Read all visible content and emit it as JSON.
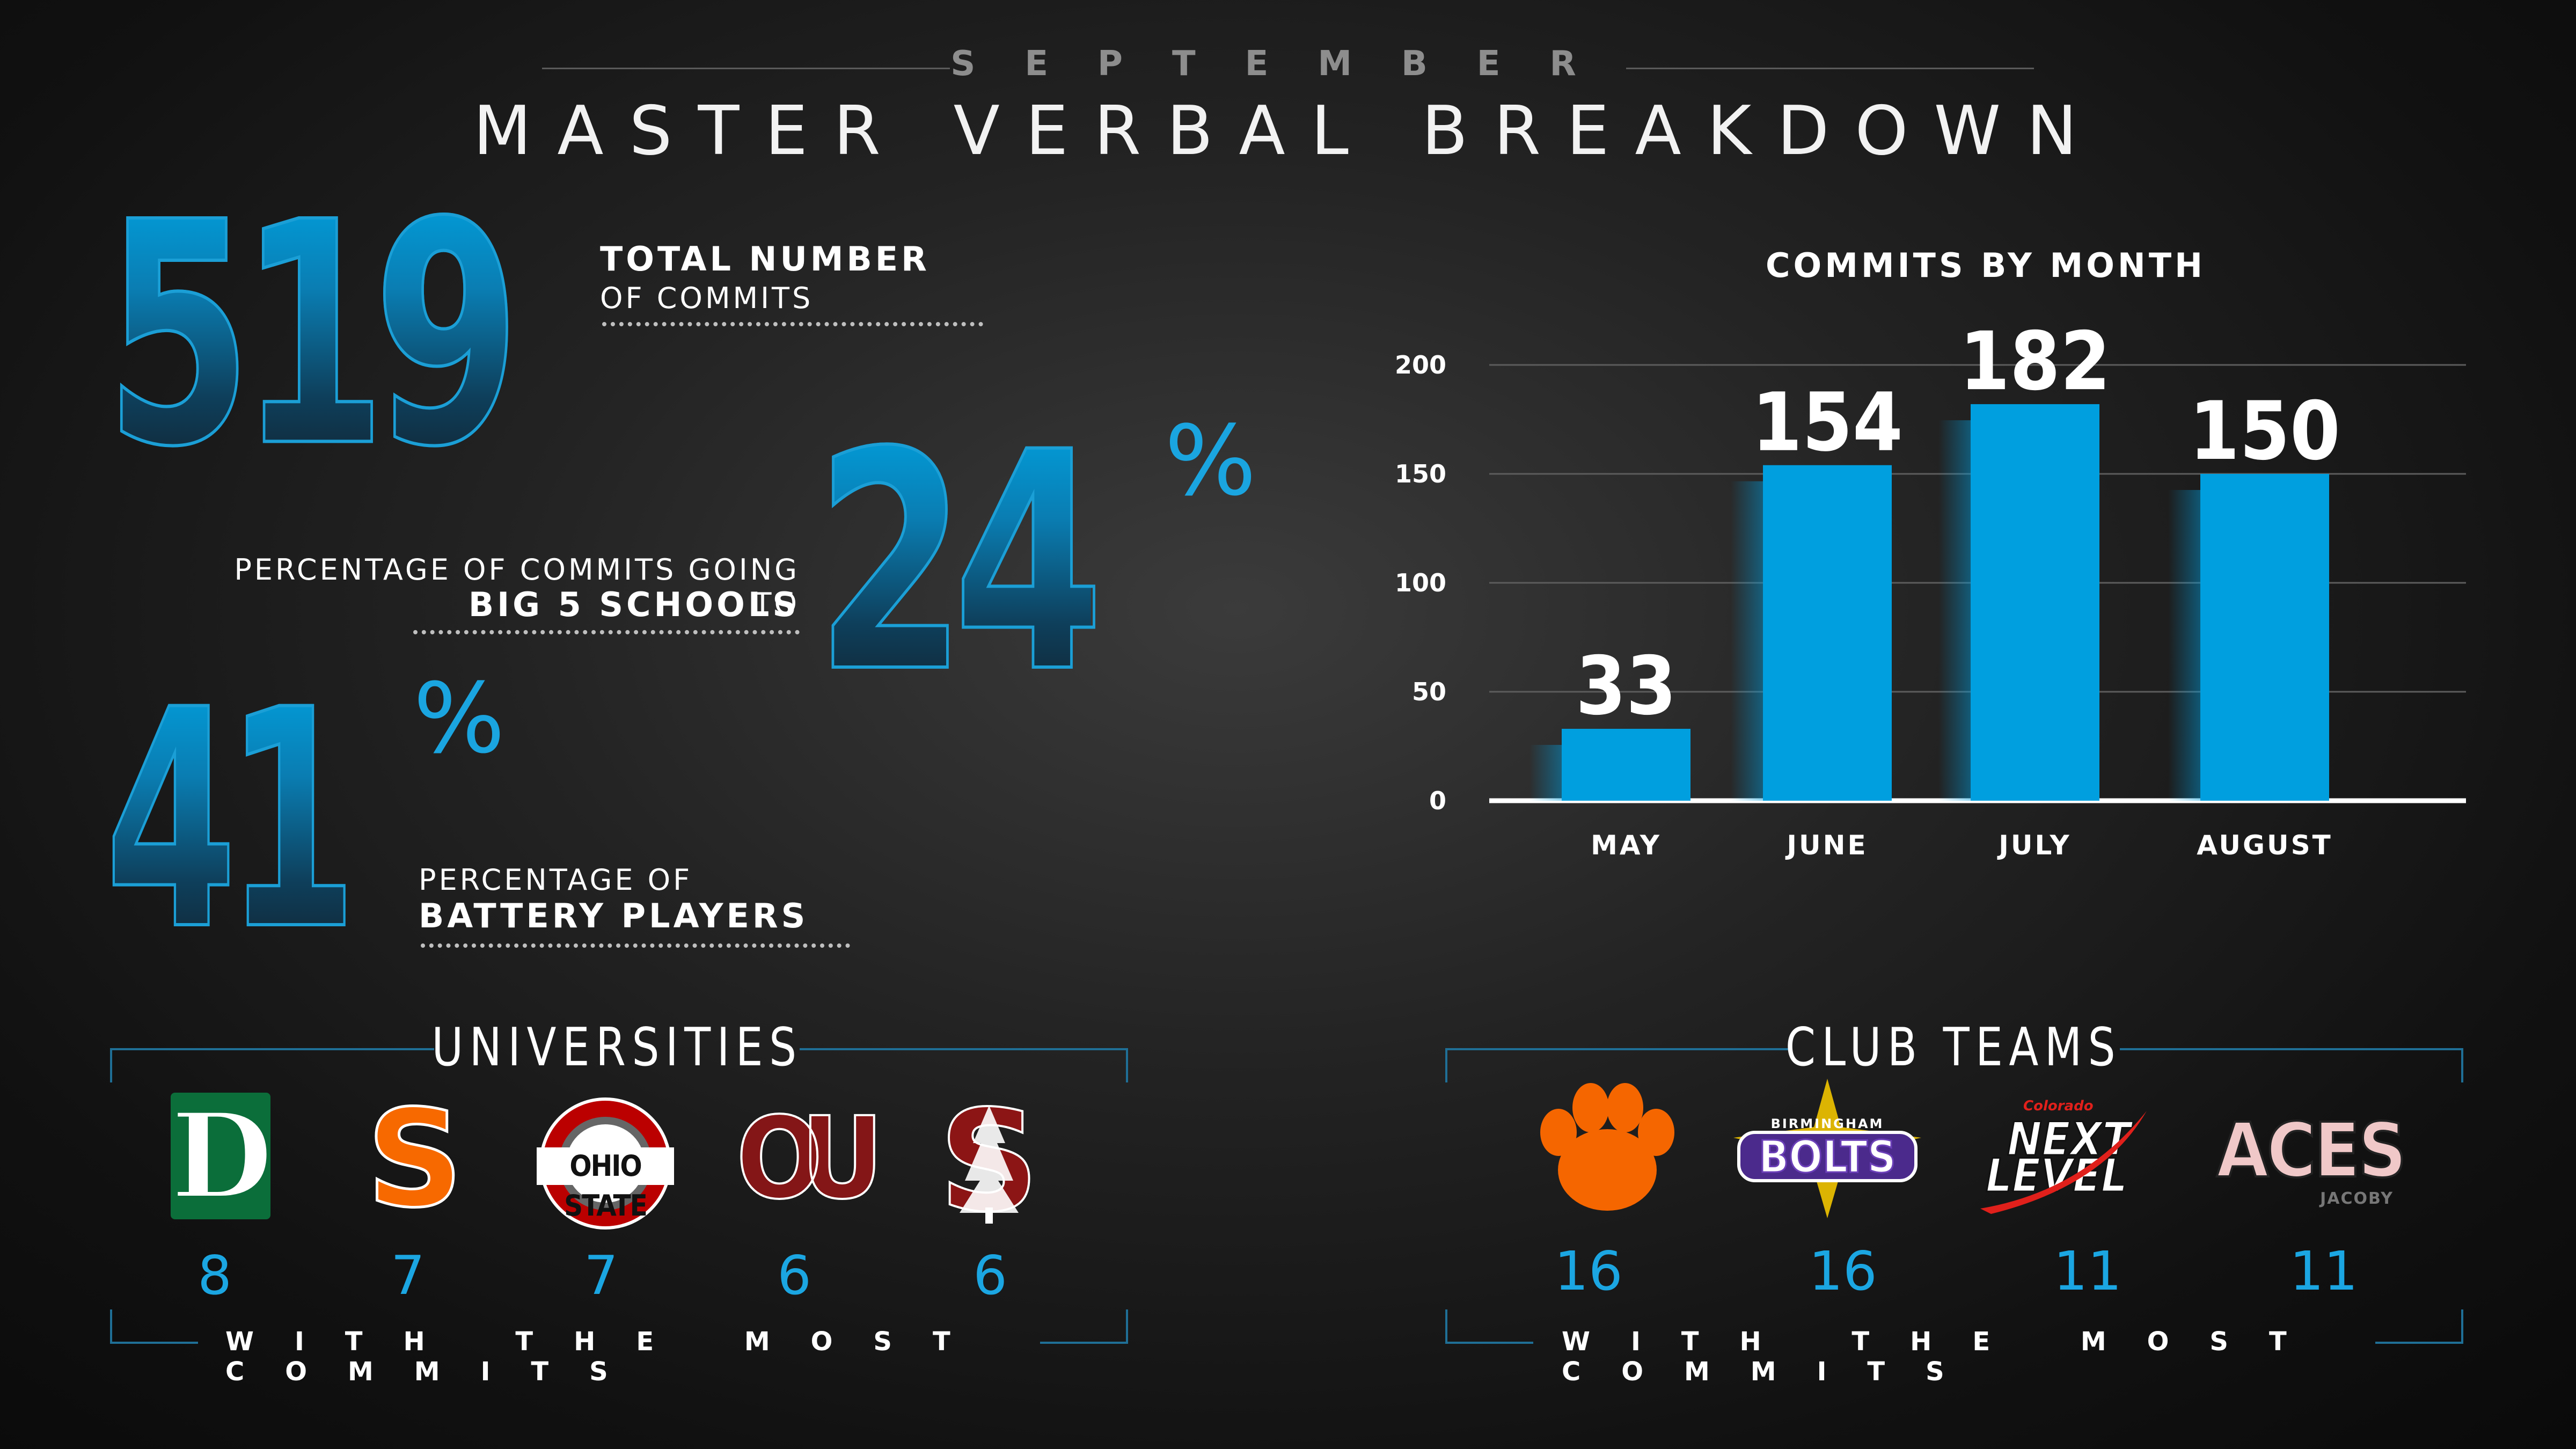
{
  "header": {
    "month": "SEPTEMBER",
    "title": "MASTER VERBAL BREAKDOWN"
  },
  "stats": {
    "total": {
      "value": "519",
      "label_line1": "TOTAL NUMBER",
      "label_line2": "OF COMMITS"
    },
    "big5": {
      "value": "24",
      "suffix": "%",
      "label_line1": "PERCENTAGE OF COMMITS GOING TO",
      "label_line2": "BIG 5 SCHOOLS"
    },
    "battery": {
      "value": "41",
      "suffix": "%",
      "label_line1": "PERCENTAGE OF",
      "label_line2": "BATTERY PLAYERS"
    }
  },
  "chart_data": {
    "type": "bar",
    "title": "COMMITS BY MONTH",
    "categories": [
      "MAY",
      "JUNE",
      "JULY",
      "AUGUST"
    ],
    "values": [
      33,
      154,
      182,
      150
    ],
    "value_labels": [
      "33",
      "154",
      "182",
      "150"
    ],
    "ylim": [
      0,
      200
    ],
    "yticks": [
      "0",
      "50",
      "100",
      "150",
      "200"
    ],
    "ytick_values": [
      0,
      50,
      100,
      150,
      200
    ],
    "grid": true,
    "xlabel": "",
    "ylabel": "",
    "bar_color": "#009fdf"
  },
  "universities": {
    "title": "UNIVERSITIES",
    "footer": "WITH THE MOST COMMITS",
    "items": [
      {
        "name": "Dartmouth",
        "logo_text": "D",
        "count": "8",
        "icon": "dartmouth-d-logo"
      },
      {
        "name": "Syracuse",
        "logo_text": "S",
        "count": "7",
        "icon": "syracuse-s-logo"
      },
      {
        "name": "Ohio State",
        "logo_text": "OHIO STATE",
        "count": "7",
        "icon": "ohio-state-logo"
      },
      {
        "name": "Oklahoma",
        "logo_text": "OU",
        "count": "6",
        "icon": "oklahoma-ou-logo"
      },
      {
        "name": "Stanford",
        "logo_text": "S",
        "count": "6",
        "icon": "stanford-tree-logo"
      }
    ]
  },
  "clubs": {
    "title": "CLUB TEAMS",
    "footer": "WITH THE MOST COMMITS",
    "items": [
      {
        "name": "Clemson paw",
        "count": "16",
        "icon": "paw-logo"
      },
      {
        "name": "Birmingham Bolts",
        "logo_small": "BIRMINGHAM",
        "logo_text": "BOLTS",
        "count": "16",
        "icon": "bolts-logo"
      },
      {
        "name": "Colorado Next Level",
        "logo_small": "Colorado",
        "logo_line1": "NEXT",
        "logo_line2": "LEVEL",
        "count": "11",
        "icon": "next-level-logo"
      },
      {
        "name": "Aces Jacoby",
        "logo_text": "ACES",
        "logo_small": "JACOBY",
        "count": "11",
        "icon": "aces-logo"
      }
    ]
  },
  "colors": {
    "accent": "#009fdf",
    "bracket": "#1f6f96"
  }
}
